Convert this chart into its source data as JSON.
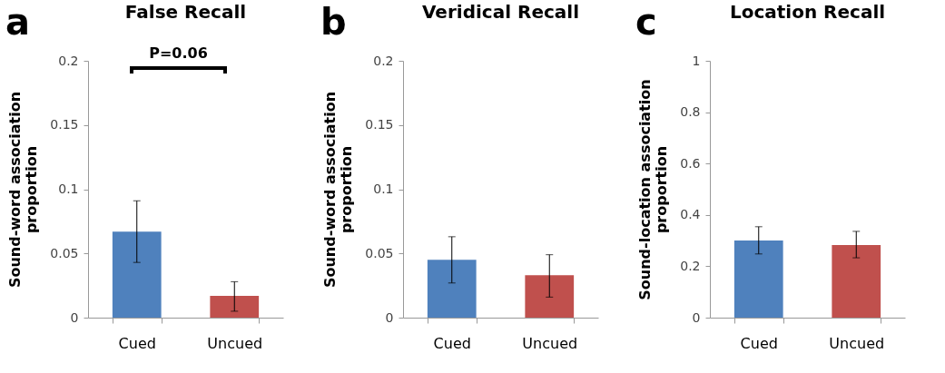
{
  "chart_data": [
    {
      "type": "bar",
      "title": "False Recall",
      "ylabel": "Sound-word association proportion",
      "categories": [
        "Cued",
        "Uncued"
      ],
      "values": [
        0.067,
        0.017
      ],
      "colors": [
        "#4f81bd",
        "#c0504d"
      ],
      "errors": [
        [
          0.043,
          0.091
        ],
        [
          0.005,
          0.028
        ]
      ],
      "ylim": [
        0,
        0.2
      ],
      "yticks": [
        0,
        0.05,
        0.1,
        0.15,
        0.2
      ],
      "annotations": [
        "a",
        "P=0.06"
      ]
    },
    {
      "type": "bar",
      "title": "Veridical Recall",
      "ylabel": "Sound-word association proportion",
      "categories": [
        "Cued",
        "Uncued"
      ],
      "values": [
        0.045,
        0.033
      ],
      "colors": [
        "#4f81bd",
        "#c0504d"
      ],
      "errors": [
        [
          0.027,
          0.063
        ],
        [
          0.016,
          0.049
        ]
      ],
      "ylim": [
        0,
        0.2
      ],
      "yticks": [
        0,
        0.05,
        0.1,
        0.15,
        0.2
      ],
      "annotations": [
        "b"
      ]
    },
    {
      "type": "bar",
      "title": "Location Recall",
      "ylabel": "Sound-location association proportion",
      "categories": [
        "Cued",
        "Uncued"
      ],
      "values": [
        0.3,
        0.283
      ],
      "colors": [
        "#4f81bd",
        "#c0504d"
      ],
      "errors": [
        [
          0.248,
          0.354
        ],
        [
          0.233,
          0.336
        ]
      ],
      "ylim": [
        0,
        1
      ],
      "yticks": [
        0,
        0.2,
        0.4,
        0.6,
        0.8,
        1
      ],
      "annotations": [
        "c"
      ]
    }
  ]
}
